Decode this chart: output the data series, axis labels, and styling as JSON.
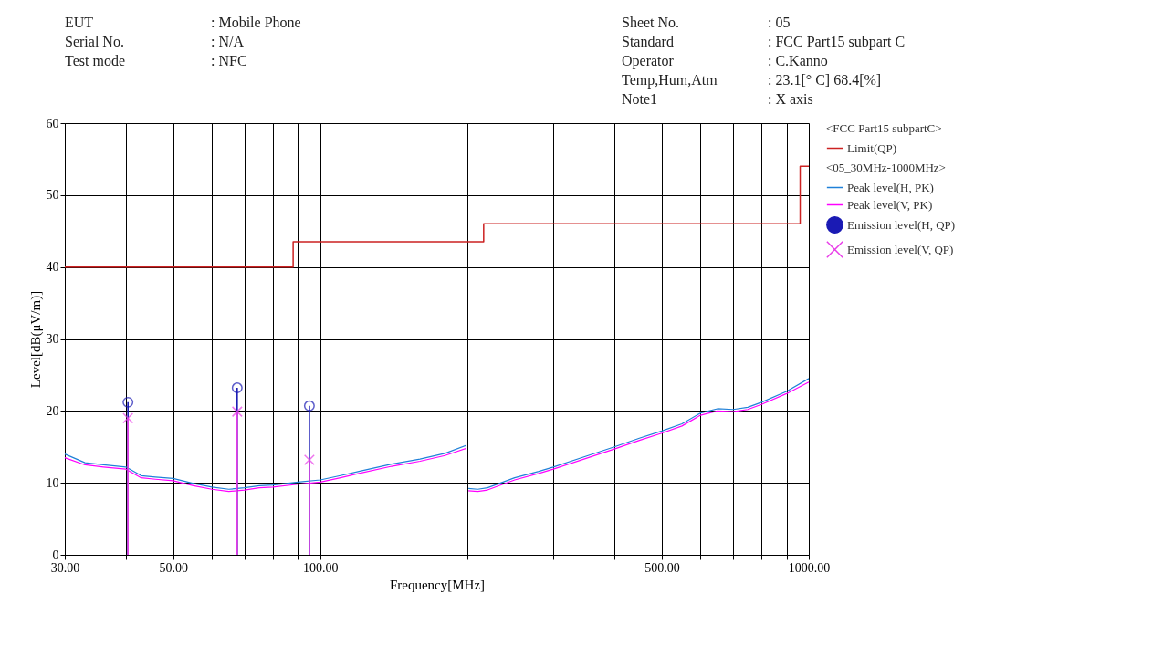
{
  "chart_data": {
    "type": "line",
    "xlabel": "Frequency[MHz]",
    "ylabel": "Level[dB(μV/m)]",
    "legend_title": "<05_30MHz-1000MHz>",
    "annotations": [
      "<FCC Part15 subpartC>",
      "EUT : Mobile Phone",
      "Serial No. : N/A",
      "Test mode : NFC",
      "Sheet No. : 05",
      "Standard : FCC Part15 subpart C",
      "Operator : C.Kanno",
      "Temp,Hum,Atm : 23.1[° C] 68.4[%]",
      "Note1 : X axis"
    ],
    "log": "x",
    "xlim": [
      30,
      1000
    ],
    "ylim": [
      0,
      60
    ],
    "xticks": [
      {
        "value": 30,
        "label": "30.00"
      },
      {
        "value": 40,
        "label": null
      },
      {
        "value": 50,
        "label": "50.00"
      },
      {
        "value": 60,
        "label": null
      },
      {
        "value": 70,
        "label": null
      },
      {
        "value": 80,
        "label": null
      },
      {
        "value": 90,
        "label": null
      },
      {
        "value": 100,
        "label": "100.00"
      },
      {
        "value": 200,
        "label": null
      },
      {
        "value": 300,
        "label": null
      },
      {
        "value": 400,
        "label": null
      },
      {
        "value": 500,
        "label": "500.00"
      },
      {
        "value": 600,
        "label": null
      },
      {
        "value": 700,
        "label": null
      },
      {
        "value": 800,
        "label": null
      },
      {
        "value": 900,
        "label": null
      },
      {
        "value": 1000,
        "label": "1000.00"
      }
    ],
    "yticks": [
      0,
      10,
      20,
      30,
      40,
      50,
      60
    ],
    "grid": true,
    "legend": "right",
    "series": [
      {
        "name": "Limit(QP)",
        "type": "step",
        "color": "#cc2222",
        "x": [
          30,
          88,
          216,
          960,
          1000
        ],
        "values": [
          40,
          43.5,
          46,
          54,
          54
        ]
      },
      {
        "name": "Peak level(H, PK)",
        "line_style": "solid",
        "color": "#1f80d8",
        "x": [
          30,
          33,
          36,
          40,
          43,
          46,
          50,
          55,
          60,
          65,
          70,
          75,
          80,
          90,
          100,
          110,
          120,
          140,
          160,
          180,
          199,
          200,
          201,
          210,
          220,
          250,
          280,
          300,
          350,
          400,
          450,
          500,
          550,
          600,
          650,
          700,
          750,
          800,
          900,
          1000
        ],
        "values": [
          14,
          12.8,
          12.5,
          12.2,
          11,
          10.8,
          10.6,
          9.9,
          9.4,
          9.1,
          9.3,
          9.6,
          9.7,
          10.1,
          10.4,
          11,
          11.6,
          12.6,
          13.3,
          14.1,
          15.2,
          null,
          9.2,
          9.1,
          9.3,
          10.7,
          11.6,
          12.2,
          13.7,
          15,
          16.2,
          17.2,
          18.2,
          19.7,
          20.3,
          20.2,
          20.5,
          21.2,
          22.7,
          24.5
        ]
      },
      {
        "name": "Peak level(V, PK)",
        "line_style": "solid",
        "color": "#ff00ff",
        "x": [
          30,
          33,
          36,
          40,
          43,
          46,
          50,
          55,
          60,
          65,
          70,
          75,
          80,
          90,
          100,
          110,
          120,
          140,
          160,
          180,
          199,
          200,
          201,
          210,
          220,
          250,
          280,
          300,
          350,
          400,
          450,
          500,
          550,
          600,
          650,
          700,
          750,
          800,
          900,
          1000
        ],
        "values": [
          13.5,
          12.5,
          12.2,
          11.9,
          10.7,
          10.5,
          10.3,
          9.6,
          9.1,
          8.8,
          9,
          9.3,
          9.4,
          9.8,
          10.1,
          10.7,
          11.3,
          12.3,
          13,
          13.8,
          14.8,
          null,
          8.9,
          8.8,
          9,
          10.4,
          11.3,
          11.9,
          13.4,
          14.7,
          15.9,
          16.9,
          17.9,
          19.4,
          20,
          19.9,
          20.2,
          20.9,
          22.4,
          24
        ]
      },
      {
        "name": "Emission level(H, QP)",
        "type": "lollipop",
        "marker": "circle",
        "color": "#1a1ab4",
        "x": [
          40.4,
          67.6,
          95
        ],
        "values": [
          21.2,
          23.2,
          20.7
        ]
      },
      {
        "name": "Emission level(V, QP)",
        "type": "lollipop",
        "marker": "cross",
        "color": "#e83ce8",
        "x": [
          40.4,
          67.6,
          95
        ],
        "values": [
          19,
          19.9,
          13.2
        ]
      }
    ]
  }
}
